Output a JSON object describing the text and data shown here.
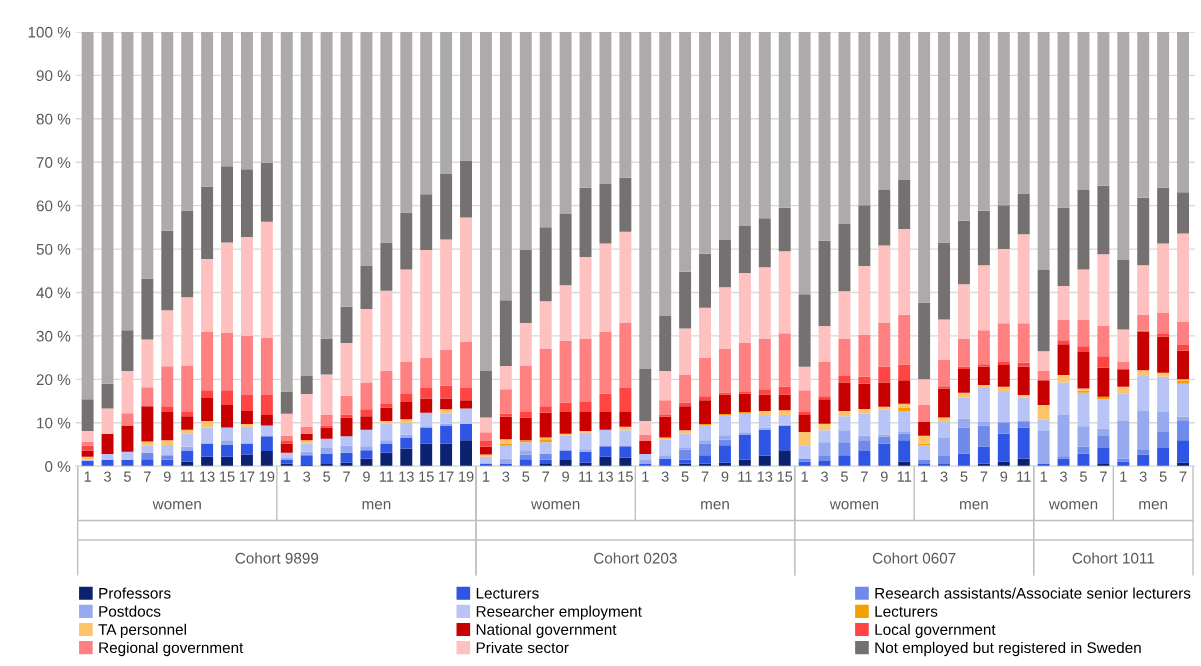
{
  "chart_data": {
    "type": "bar",
    "stacked": true,
    "categories": [
      "1",
      "3",
      "5",
      "7",
      "9",
      "11",
      "13",
      "15",
      "17",
      "19",
      "1",
      "3",
      "5",
      "7",
      "9",
      "11",
      "13",
      "15",
      "17",
      "19",
      "1",
      "3",
      "5",
      "7",
      "9",
      "11",
      "13",
      "15",
      "1",
      "3",
      "5",
      "7",
      "9",
      "11",
      "13",
      "15",
      "1",
      "3",
      "5",
      "7",
      "9",
      "11",
      "1",
      "3",
      "5",
      "7",
      "9",
      "11",
      "1",
      "3",
      "5",
      "7",
      "1",
      "3",
      "5",
      "7"
    ],
    "annotations": [
      "women",
      "men",
      "Cohort 9899",
      "women",
      "men",
      "Cohort 0203",
      "women",
      "men",
      "Cohort 0607",
      "women",
      "men",
      "Cohort 1011"
    ],
    "ylim": [
      0,
      100
    ],
    "yticks": [
      {
        "value": 0,
        "label": "0 %"
      },
      {
        "value": 10,
        "label": "10 %"
      },
      {
        "value": 20,
        "label": "20 %"
      },
      {
        "value": 30,
        "label": "30 %"
      },
      {
        "value": 40,
        "label": "40 %"
      },
      {
        "value": 50,
        "label": "50 %"
      },
      {
        "value": 60,
        "label": "60 %"
      },
      {
        "value": 70,
        "label": "70 %"
      },
      {
        "value": 80,
        "label": "80 %"
      },
      {
        "value": 90,
        "label": "90 %"
      },
      {
        "value": 100,
        "label": "100 %"
      }
    ],
    "grid": "y",
    "legend": "bottom",
    "series": [
      {
        "name": "Professors",
        "color": "#0c2270",
        "values": [
          0,
          0,
          0,
          0,
          0,
          1.0,
          2.2,
          2.2,
          2.7,
          3.5,
          0.6,
          0.3,
          0.5,
          0.8,
          1.8,
          3.1,
          4.1,
          5.2,
          5.2,
          6.0,
          0,
          0,
          0,
          0.5,
          1.4,
          0.8,
          2.2,
          2.0,
          0,
          0,
          0.6,
          0.6,
          0.8,
          1.5,
          2.4,
          3.7,
          0,
          0,
          0,
          0,
          0,
          1.0,
          0,
          0,
          0,
          0.6,
          1.0,
          1.8,
          0,
          0,
          0,
          0.5,
          0,
          0,
          0,
          0.8
        ]
      },
      {
        "name": "Lecturers",
        "color": "#2f55e4",
        "values": [
          1.2,
          1.5,
          1.5,
          1.6,
          1.5,
          2.5,
          3.0,
          2.8,
          2.5,
          3.4,
          0.8,
          2.2,
          2.3,
          2.3,
          1.9,
          2.1,
          2.4,
          3.7,
          4.2,
          3.8,
          0.6,
          0.6,
          1.6,
          1.0,
          2.1,
          2.5,
          2.4,
          2.6,
          0.6,
          1.8,
          0.9,
          1.9,
          4.0,
          5.8,
          6.0,
          5.6,
          1.0,
          1.2,
          2.5,
          3.5,
          5.2,
          5.0,
          0.5,
          0.5,
          2.9,
          3.9,
          6.5,
          7.1,
          0.6,
          1.8,
          2.9,
          3.7,
          1.0,
          2.7,
          4.2,
          5.2
        ]
      },
      {
        "name": "Research assistants/Associate senior lecturers",
        "color": "#6f8ae8",
        "values": [
          0,
          0,
          0,
          1.5,
          1.0,
          0,
          0,
          0,
          0,
          0,
          0,
          0,
          0,
          0,
          0,
          0,
          0,
          0,
          0,
          0,
          0,
          0,
          1.1,
          1.3,
          0,
          0,
          0,
          0,
          0,
          0,
          2.3,
          2.7,
          1.3,
          0,
          0,
          0,
          0.8,
          1.3,
          3.0,
          2.5,
          1.6,
          1.5,
          0.9,
          2.0,
          6.0,
          4.9,
          2.6,
          1.3,
          0,
          0.5,
          1.6,
          2.9,
          0.8,
          1.2,
          3.7,
          4.6
        ]
      },
      {
        "name": "Postdocs",
        "color": "#97a9ef",
        "values": [
          0,
          0,
          0,
          0,
          0,
          1.0,
          0,
          1.0,
          0,
          0,
          0.6,
          0.8,
          1.4,
          1.6,
          0.9,
          0.8,
          0.8,
          0.3,
          0.4,
          0,
          0,
          1.2,
          1.0,
          0,
          0.4,
          0.6,
          0,
          0,
          0.8,
          0.7,
          0.4,
          0.8,
          1.0,
          0.5,
          0.5,
          0.3,
          0,
          3.0,
          2.8,
          1.0,
          0.5,
          0.4,
          0,
          4.0,
          2.1,
          0.8,
          0,
          0.2,
          7.5,
          9.5,
          4.7,
          1.6,
          8.6,
          8.8,
          4.6,
          0.8
        ]
      },
      {
        "name": "Researcher employment",
        "color": "#b8c4f5",
        "values": [
          0.4,
          1.3,
          1.8,
          1.6,
          2.4,
          3.0,
          3.7,
          2.9,
          3.9,
          2.5,
          0.8,
          1.9,
          2.1,
          2.2,
          3.8,
          3.8,
          2.7,
          3.1,
          2.3,
          3.5,
          1.6,
          2.9,
          1.8,
          2.7,
          3.2,
          3.8,
          3.8,
          3.7,
          1.4,
          3.6,
          3.3,
          3.4,
          4.7,
          4.3,
          2.9,
          2.2,
          2.9,
          2.8,
          3.2,
          5.1,
          5.8,
          4.8,
          3.4,
          3.9,
          4.8,
          7.8,
          7.2,
          5.4,
          2.7,
          7.5,
          7.7,
          6.7,
          6.3,
          8.1,
          8.1,
          7.6
        ]
      },
      {
        "name": "Lecturers",
        "color": "#f5a000",
        "values": [
          0,
          0,
          0,
          0,
          0,
          0,
          0,
          0,
          0,
          0,
          0,
          0,
          0,
          0,
          0,
          0,
          0,
          0,
          0,
          0,
          0,
          0.5,
          0.5,
          0.7,
          0,
          0,
          0,
          0,
          0,
          0,
          0,
          0.3,
          0.2,
          0.4,
          0,
          0,
          0,
          0,
          0,
          0,
          0,
          0.7,
          0.4,
          0,
          0,
          0,
          0,
          0,
          0,
          0,
          0.5,
          0.6,
          0,
          0,
          0,
          0.6
        ]
      },
      {
        "name": "TA personnel",
        "color": "#fdc56b",
        "values": [
          0.6,
          0,
          0,
          1.0,
          1.1,
          0.9,
          1.5,
          0,
          0.6,
          0,
          0.3,
          0.8,
          0,
          0,
          0,
          0.6,
          0.8,
          0,
          1.0,
          0,
          0.5,
          1.0,
          0,
          0.4,
          0.4,
          0.4,
          0,
          0.8,
          0,
          0.5,
          0.8,
          0,
          0,
          0,
          0.9,
          1.1,
          3.2,
          1.5,
          1.2,
          1.1,
          0.6,
          1.0,
          1.8,
          0.8,
          1.1,
          0.7,
          1.0,
          0.6,
          3.3,
          1.7,
          0.5,
          0,
          1.6,
          1.3,
          0.9,
          0.4
        ]
      },
      {
        "name": "National government",
        "color": "#c80000",
        "values": [
          1.4,
          4.7,
          6.1,
          8.1,
          6.5,
          3.1,
          5.3,
          5.2,
          3.0,
          2.4,
          2.1,
          1.5,
          2.6,
          4.3,
          3.1,
          3.1,
          4.0,
          3.3,
          2.5,
          1.9,
          1.8,
          5.2,
          5.2,
          5.7,
          5.0,
          4.4,
          4.1,
          3.4,
          3.0,
          4.8,
          5.5,
          5.5,
          4.5,
          4.2,
          3.8,
          3.6,
          3.9,
          5.6,
          6.6,
          5.8,
          5.6,
          5.4,
          3.2,
          6.7,
          5.5,
          4.2,
          5.0,
          6.5,
          5.7,
          7.1,
          8.4,
          6.7,
          4.0,
          8.9,
          8.3,
          6.6
        ]
      },
      {
        "name": "Local government",
        "color": "#ff4444",
        "values": [
          1.1,
          0,
          0,
          0,
          1.3,
          1.0,
          1.8,
          3.4,
          3.7,
          4.6,
          0.6,
          0,
          0.5,
          0.7,
          1.6,
          0.8,
          1.8,
          2.4,
          2.9,
          2.8,
          1.3,
          0.7,
          1.3,
          1.5,
          2.1,
          2.3,
          4.2,
          5.5,
          0,
          0.4,
          0.8,
          0.9,
          0.5,
          0.4,
          1.2,
          1.8,
          0.7,
          0.7,
          1.5,
          1.6,
          3.6,
          3.6,
          0,
          0.5,
          0.5,
          0.6,
          0.7,
          0.9,
          0,
          0.9,
          1.3,
          2.6,
          0,
          0.2,
          0.8,
          1.3
        ]
      },
      {
        "name": "Regional government",
        "color": "#ff8080",
        "values": [
          1.0,
          0,
          2.8,
          4.4,
          9.2,
          10.7,
          13.5,
          13.2,
          13.6,
          13.1,
          1.2,
          1.6,
          2.4,
          4.3,
          6.2,
          7.7,
          7.4,
          7.0,
          8.4,
          10.6,
          2.0,
          5.6,
          10.7,
          13.3,
          14.3,
          14.6,
          14.3,
          15.1,
          1.5,
          3.4,
          6.5,
          8.9,
          10.1,
          11.3,
          11.6,
          12.3,
          5.0,
          7.9,
          8.6,
          9.6,
          10.2,
          11.5,
          3.9,
          6.2,
          6.4,
          7.8,
          8.9,
          9.1,
          2.1,
          4.8,
          6.2,
          7.0,
          1.7,
          3.6,
          4.8,
          5.4
        ]
      },
      {
        "name": "Private sector",
        "color": "#ffc0c0",
        "values": [
          2.4,
          5.8,
          9.7,
          11.0,
          12.9,
          15.7,
          16.7,
          20.8,
          22.8,
          26.8,
          5.1,
          7.5,
          9.3,
          12.2,
          16.9,
          18.4,
          21.3,
          24.8,
          25.3,
          28.7,
          3.4,
          5.4,
          9.8,
          10.9,
          12.8,
          18.8,
          20.3,
          20.9,
          3.1,
          6.7,
          10.6,
          11.5,
          14.1,
          16.1,
          16.5,
          18.9,
          5.4,
          8.3,
          10.9,
          15.9,
          17.7,
          19.7,
          5.9,
          9.2,
          12.6,
          15.0,
          17.1,
          20.5,
          4.6,
          7.7,
          11.5,
          16.5,
          7.5,
          11.5,
          15.9,
          20.3
        ]
      },
      {
        "name": "Not employed but registered in Sweden",
        "color": "#767171",
        "values": [
          7.3,
          5.7,
          9.4,
          14.0,
          18.3,
          20.0,
          16.7,
          17.6,
          15.6,
          13.6,
          5.1,
          4.2,
          8.3,
          8.3,
          9.9,
          11.1,
          13.1,
          12.8,
          15.1,
          13.1,
          10.7,
          15.1,
          16.8,
          17.0,
          16.4,
          15.9,
          13.7,
          12.4,
          12.0,
          12.7,
          13.1,
          12.4,
          10.9,
          10.8,
          11.3,
          10.0,
          16.7,
          19.6,
          15.5,
          14.0,
          12.8,
          11.3,
          17.7,
          17.7,
          14.6,
          12.5,
          10.1,
          9.4,
          18.7,
          18.1,
          18.3,
          15.8,
          16.0,
          15.5,
          12.8,
          9.5
        ]
      },
      {
        "color": "#aeaaaa",
        "values": [
          84.6,
          81.0,
          68.7,
          56.8,
          45.8,
          41.1,
          35.6,
          30.9,
          31.6,
          30.1,
          82.8,
          79.2,
          70.6,
          63.3,
          53.9,
          48.5,
          41.6,
          37.4,
          32.7,
          29.6,
          78.1,
          61.8,
          50.2,
          45.0,
          41.9,
          35.9,
          35.0,
          33.6,
          77.6,
          65.4,
          55.2,
          51.1,
          47.9,
          44.7,
          42.9,
          40.5,
          60.4,
          48.1,
          44.2,
          39.9,
          36.4,
          34.1,
          62.3,
          48.5,
          43.5,
          41.2,
          39.9,
          37.2,
          54.8,
          40.4,
          36.4,
          35.4,
          52.5,
          38.2,
          35.9,
          36.9
        ]
      }
    ]
  }
}
